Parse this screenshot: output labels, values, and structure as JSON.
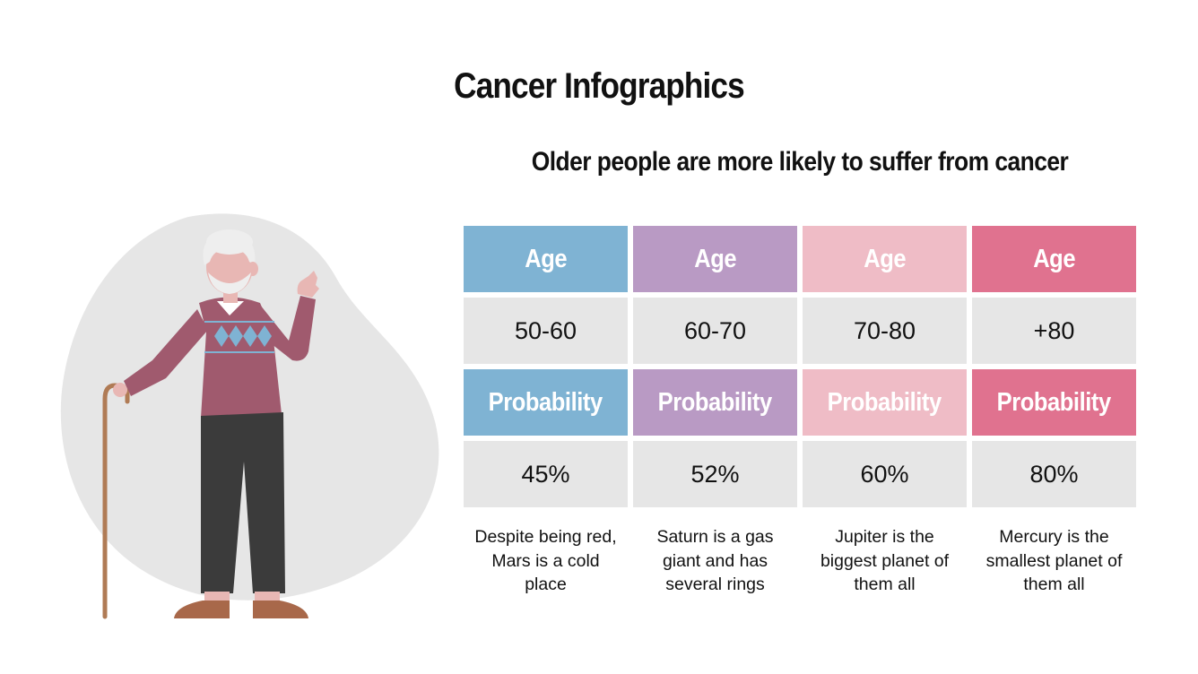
{
  "title": "Cancer Infographics",
  "subtitle": "Older people are more likely to suffer from cancer",
  "illustration": {
    "icon": "elderly-man-with-cane-icon"
  },
  "colors": {
    "blue": "#7fb3d3",
    "purple": "#b99ac4",
    "light_pink": "#efbcc6",
    "pink": "#e0728f",
    "cell_gray": "#e6e6e6",
    "blob_gray": "#e6e6e6"
  },
  "columns": [
    {
      "age_label": "Age",
      "age": "50-60",
      "probability_label": "Probability",
      "probability": "45%",
      "description": "Despite being red, Mars is a cold place"
    },
    {
      "age_label": "Age",
      "age": "60-70",
      "probability_label": "Probability",
      "probability": "52%",
      "description": "Saturn is a gas giant and has several rings"
    },
    {
      "age_label": "Age",
      "age": "70-80",
      "probability_label": "Probability",
      "probability": "60%",
      "description": "Jupiter is the biggest planet of them all"
    },
    {
      "age_label": "Age",
      "age": "+80",
      "probability_label": "Probability",
      "probability": "80%",
      "description": "Mercury is the smallest planet of them all"
    }
  ]
}
